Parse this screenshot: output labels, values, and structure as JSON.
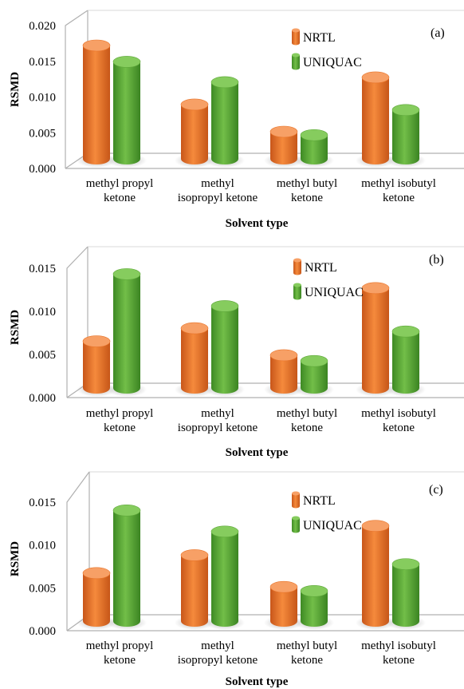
{
  "chart_data": [
    {
      "type": "bar",
      "panel_label": "(a)",
      "xlabel": "Solvent type",
      "ylabel": "RSMD",
      "categories": [
        "methyl propyl|ketone",
        "methyl|isopropyl ketone",
        "methyl butyl|ketone",
        "methyl isobutyl|ketone"
      ],
      "series": [
        {
          "name": "NRTL",
          "values": [
            0.0167,
            0.008,
            0.004,
            0.012
          ]
        },
        {
          "name": "UNIQUAC",
          "values": [
            0.0143,
            0.0113,
            0.0035,
            0.0072
          ]
        }
      ],
      "ylim": [
        0,
        0.02
      ],
      "yticks": [
        "0.000",
        "0.005",
        "0.010",
        "0.015",
        "0.020"
      ],
      "legend_position": "top-right"
    },
    {
      "type": "bar",
      "panel_label": "(b)",
      "xlabel": "Solvent type",
      "ylabel": "RSMD",
      "categories": [
        "methyl propyl|ketone",
        "methyl|isopropyl ketone",
        "methyl butyl|ketone",
        "methyl isobutyl|ketone"
      ],
      "series": [
        {
          "name": "NRTL",
          "values": [
            0.0057,
            0.0073,
            0.004,
            0.0122
          ]
        },
        {
          "name": "UNIQUAC",
          "values": [
            0.0139,
            0.01,
            0.0033,
            0.0069
          ]
        }
      ],
      "ylim": [
        0,
        0.015
      ],
      "yticks": [
        "0.000",
        "0.005",
        "0.010",
        "0.015"
      ],
      "legend_position": "top-right"
    },
    {
      "type": "bar",
      "panel_label": "(c)",
      "xlabel": "Solvent type",
      "ylabel": "RSMD",
      "categories": [
        "methyl propyl|ketone",
        "methyl|isopropyl ketone",
        "methyl butyl|ketone",
        "methyl isobutyl|ketone"
      ],
      "series": [
        {
          "name": "NRTL",
          "values": [
            0.0059,
            0.0081,
            0.0042,
            0.0117
          ]
        },
        {
          "name": "UNIQUAC",
          "values": [
            0.0136,
            0.011,
            0.0037,
            0.007
          ]
        }
      ],
      "ylim": [
        0,
        0.015
      ],
      "yticks": [
        "0.000",
        "0.005",
        "0.010",
        "0.015"
      ],
      "legend_position": "top-right"
    }
  ],
  "colors": {
    "NRTL": "#E8742A",
    "UNIQUAC": "#5EA83A",
    "axis": "#B0B0B0"
  }
}
